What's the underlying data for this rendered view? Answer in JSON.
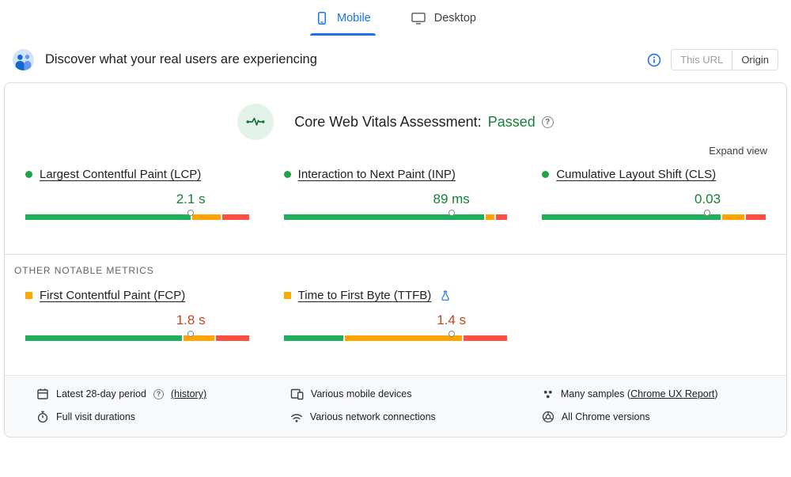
{
  "colors": {
    "accent_blue": "#1a73e8",
    "good_text": "#188038",
    "needs_improvement_text": "#c5451c",
    "bar_good": "#1eaf5b",
    "bar_needs_improvement": "#ffa400",
    "bar_poor": "#ff4e42"
  },
  "tabs": {
    "mobile": "Mobile",
    "desktop": "Desktop"
  },
  "header": {
    "title": "Discover what your real users are experiencing",
    "scope_toggle": {
      "this_url": "This URL",
      "origin": "Origin",
      "selected": "Origin"
    }
  },
  "assessment": {
    "label": "Core Web Vitals Assessment:",
    "status": "Passed",
    "expand_view": "Expand view"
  },
  "core_metrics": [
    {
      "name": "Largest Contentful Paint (LCP)",
      "value": "2.1 s",
      "status": "good",
      "distribution": {
        "good": 75,
        "needs_improvement": 13,
        "poor": 12
      },
      "p75_position_pct": 74
    },
    {
      "name": "Interaction to Next Paint (INP)",
      "value": "89 ms",
      "status": "good",
      "distribution": {
        "good": 91,
        "needs_improvement": 4,
        "poor": 5
      },
      "p75_position_pct": 75
    },
    {
      "name": "Cumulative Layout Shift (CLS)",
      "value": "0.03",
      "status": "good",
      "distribution": {
        "good": 81,
        "needs_improvement": 10,
        "poor": 9
      },
      "p75_position_pct": 74
    }
  ],
  "other_metrics_heading": "OTHER NOTABLE METRICS",
  "other_metrics": [
    {
      "name": "First Contentful Paint (FCP)",
      "value": "1.8 s",
      "status": "needs_improvement",
      "distribution": {
        "good": 71,
        "needs_improvement": 14,
        "poor": 15
      },
      "p75_position_pct": 74
    },
    {
      "name": "Time to First Byte (TTFB)",
      "value": "1.4 s",
      "status": "needs_improvement",
      "experimental": true,
      "distribution": {
        "good": 27,
        "needs_improvement": 53,
        "poor": 20
      },
      "p75_position_pct": 75
    }
  ],
  "footer": {
    "period_text": "Latest 28-day period",
    "history_link": "(history)",
    "durations_text": "Full visit durations",
    "devices_text": "Various mobile devices",
    "network_text": "Various network connections",
    "samples_prefix": "Many samples (",
    "samples_link": "Chrome UX Report",
    "samples_suffix": ")",
    "chrome_text": "All Chrome versions"
  }
}
